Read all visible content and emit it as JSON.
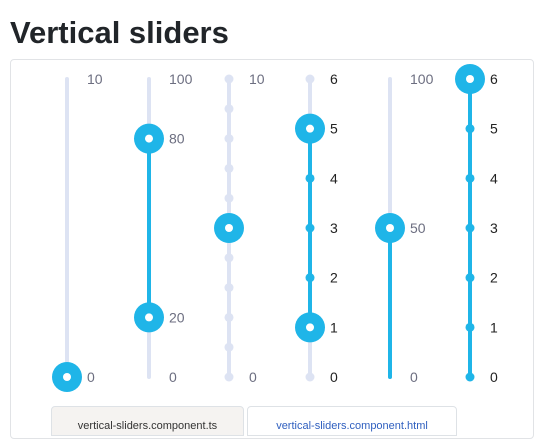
{
  "page": {
    "title": "Vertical sliders"
  },
  "colors": {
    "track": "#dde3f3",
    "accent": "#1fb5e8",
    "label": "#6c6e80",
    "label_dark": "#222222"
  },
  "sliders": [
    {
      "id": "slider-1",
      "min": 0,
      "max": 10,
      "step": null,
      "values": [
        0
      ],
      "range": false,
      "tick_labels": [
        "0",
        "10"
      ],
      "label_dark": false
    },
    {
      "id": "slider-2",
      "min": 0,
      "max": 100,
      "step": null,
      "values": [
        20,
        80
      ],
      "range": true,
      "tick_labels": [
        "0",
        "100"
      ],
      "label_dark": false
    },
    {
      "id": "slider-3",
      "min": 0,
      "max": 10,
      "step": 1,
      "values": [
        5
      ],
      "range": false,
      "tick_labels": [
        "0",
        "10"
      ],
      "label_dark": false
    },
    {
      "id": "slider-4",
      "min": 0,
      "max": 6,
      "step": 1,
      "values": [
        1,
        5
      ],
      "range": true,
      "tick_labels": [
        "0",
        "1",
        "2",
        "3",
        "4",
        "5",
        "6"
      ],
      "label_dark": true
    },
    {
      "id": "slider-5",
      "min": 0,
      "max": 100,
      "step": null,
      "values": [
        50
      ],
      "range": false,
      "fill_from_min": true,
      "tick_labels": [
        "0",
        "100"
      ],
      "label_dark": false
    },
    {
      "id": "slider-6",
      "min": 0,
      "max": 6,
      "step": 1,
      "values": [
        6
      ],
      "range": false,
      "fill_from_min": true,
      "tick_labels": [
        "0",
        "1",
        "2",
        "3",
        "4",
        "5",
        "6"
      ],
      "label_dark": true
    }
  ],
  "tabs": [
    {
      "label": "vertical-sliders.component.ts"
    },
    {
      "label": "vertical-sliders.component.html"
    }
  ]
}
